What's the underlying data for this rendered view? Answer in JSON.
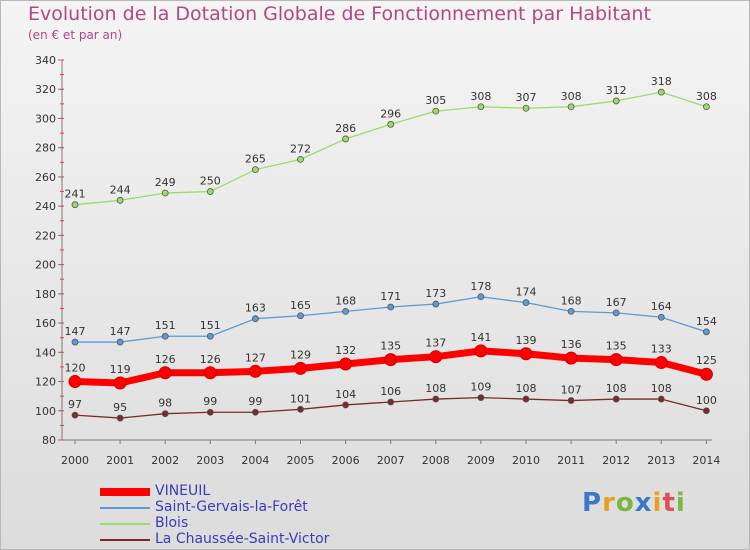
{
  "title": "Evolution de la Dotation Globale de Fonctionnement par Habitant",
  "subtitle": "(en € et par an)",
  "logo": {
    "text": "Proxiti",
    "colors": [
      "#3a78c8",
      "#e8a020",
      "#7cb83c",
      "#3a78c8",
      "#e8a020",
      "#e05050",
      "#7cb83c"
    ]
  },
  "chart_data": {
    "type": "line",
    "title": "Evolution de la Dotation Globale de Fonctionnement par Habitant",
    "subtitle": "(en € et par an)",
    "x": [
      "2000",
      "2001",
      "2002",
      "2003",
      "2004",
      "2005",
      "2006",
      "2007",
      "2008",
      "2009",
      "2010",
      "2011",
      "2012",
      "2013",
      "2014"
    ],
    "ylim": [
      80,
      340
    ],
    "yticks": [
      80,
      100,
      120,
      140,
      160,
      180,
      200,
      220,
      240,
      260,
      280,
      300,
      320,
      340
    ],
    "grid": false,
    "legend_position": "bottom-left",
    "series": [
      {
        "name": "VINEUIL",
        "color": "#ff0000",
        "values": [
          120,
          119,
          126,
          126,
          127,
          129,
          132,
          135,
          137,
          141,
          139,
          136,
          135,
          133,
          125
        ]
      },
      {
        "name": "Saint-Gervais-la-Forêt",
        "color": "#5b9bd5",
        "values": [
          147,
          147,
          151,
          151,
          163,
          165,
          168,
          171,
          173,
          178,
          174,
          168,
          167,
          164,
          154
        ]
      },
      {
        "name": "Blois",
        "color": "#99dd66",
        "values": [
          241,
          244,
          249,
          250,
          265,
          272,
          286,
          296,
          305,
          308,
          307,
          308,
          312,
          318,
          308
        ]
      },
      {
        "name": "La Chaussée-Saint-Victor",
        "color": "#7a2a2a",
        "values": [
          97,
          95,
          98,
          99,
          99,
          101,
          104,
          106,
          108,
          109,
          108,
          107,
          108,
          108,
          100
        ]
      }
    ]
  }
}
